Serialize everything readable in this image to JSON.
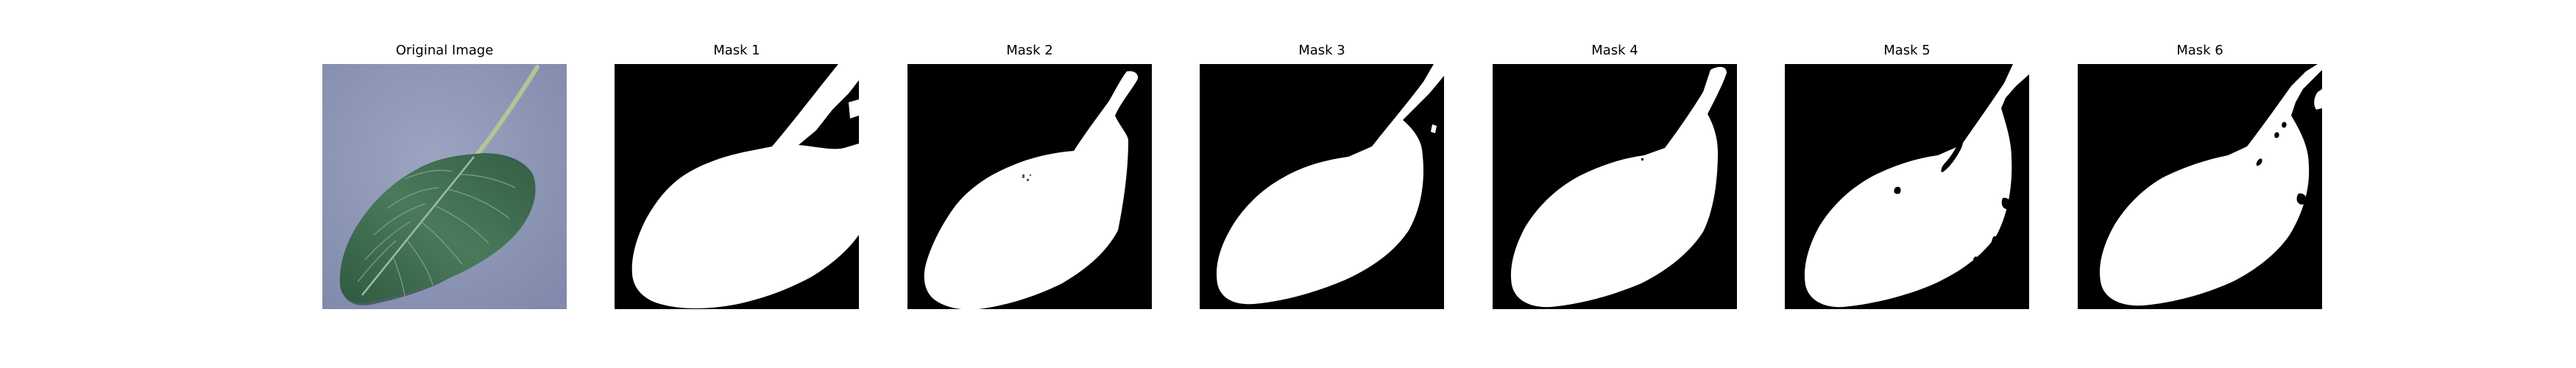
{
  "figure": {
    "panels": [
      {
        "title": "Original Image",
        "kind": "photo"
      },
      {
        "title": "Mask 1",
        "kind": "mask"
      },
      {
        "title": "Mask 2",
        "kind": "mask"
      },
      {
        "title": "Mask 3",
        "kind": "mask"
      },
      {
        "title": "Mask 4",
        "kind": "mask"
      },
      {
        "title": "Mask 5",
        "kind": "mask"
      },
      {
        "title": "Mask 6",
        "kind": "mask"
      }
    ],
    "colors": {
      "mask_background": "#000000",
      "mask_foreground": "#ffffff",
      "photo_background": "#8e97b5",
      "leaf": "#3f6a4f",
      "leaf_dark": "#2c4d39",
      "leaf_vein": "#8fae97",
      "stem": "#aebf8e"
    }
  }
}
